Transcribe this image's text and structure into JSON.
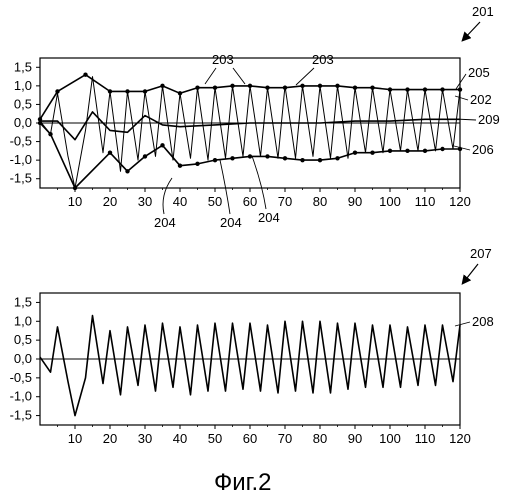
{
  "caption": "Фиг.2",
  "chart_data": [
    {
      "id": "top",
      "type": "line",
      "xlim": [
        0,
        120
      ],
      "ylim": [
        -1.75,
        1.75
      ],
      "x_ticks": [
        "10",
        "20",
        "30",
        "40",
        "50",
        "60",
        "70",
        "80",
        "90",
        "100",
        "110",
        "120"
      ],
      "y_ticks": [
        "1,5",
        "1,0",
        "0,5",
        "0,0",
        "-0,5",
        "-1,0",
        "-1,5"
      ],
      "series": [
        {
          "ref": "202",
          "x": [
            0,
            3,
            5,
            8,
            10,
            13,
            15,
            18,
            20,
            23,
            25,
            28,
            30,
            33,
            35,
            38,
            40,
            43,
            45,
            48,
            50,
            53,
            55,
            58,
            60,
            63,
            65,
            68,
            70,
            73,
            75,
            78,
            80,
            83,
            85,
            88,
            90,
            93,
            95,
            98,
            100,
            103,
            105,
            108,
            110,
            113,
            115,
            118,
            120
          ],
          "y": [
            0.05,
            -0.3,
            0.8,
            -0.9,
            -1.75,
            -0.2,
            1.25,
            -0.8,
            0.85,
            -1.3,
            0.85,
            -1.0,
            0.85,
            -0.9,
            1.0,
            -1.0,
            0.8,
            -0.95,
            0.95,
            -1.0,
            0.95,
            -0.95,
            1.0,
            -0.9,
            1.0,
            -0.9,
            0.95,
            -0.95,
            1.0,
            -0.95,
            1.0,
            -0.9,
            1.0,
            -0.95,
            1.0,
            -0.95,
            0.95,
            -0.8,
            0.95,
            -0.8,
            0.9,
            -0.75,
            0.9,
            -0.75,
            0.9,
            -0.75,
            0.9,
            -0.7,
            0.9
          ]
        },
        {
          "ref": "205",
          "x": [
            0,
            5,
            13,
            20,
            25,
            30,
            35,
            40,
            45,
            50,
            55,
            60,
            65,
            70,
            75,
            80,
            85,
            90,
            95,
            100,
            105,
            110,
            115,
            120
          ],
          "y": [
            0.1,
            0.85,
            1.3,
            0.85,
            0.85,
            0.85,
            1.0,
            0.8,
            0.95,
            0.95,
            1.0,
            1.0,
            0.95,
            0.95,
            1.0,
            1.0,
            1.0,
            0.95,
            0.95,
            0.9,
            0.9,
            0.9,
            0.9,
            0.9
          ]
        },
        {
          "ref": "206",
          "x": [
            0,
            3,
            10,
            20,
            25,
            30,
            35,
            40,
            45,
            50,
            55,
            60,
            65,
            70,
            75,
            80,
            85,
            90,
            95,
            100,
            105,
            110,
            115,
            120
          ],
          "y": [
            0.0,
            -0.3,
            -1.75,
            -0.8,
            -1.3,
            -0.9,
            -0.6,
            -1.15,
            -1.1,
            -1.0,
            -0.95,
            -0.9,
            -0.9,
            -0.95,
            -1.0,
            -1.0,
            -0.95,
            -0.8,
            -0.8,
            -0.75,
            -0.75,
            -0.75,
            -0.7,
            -0.7
          ]
        },
        {
          "ref": "209",
          "x": [
            0,
            5,
            10,
            15,
            20,
            25,
            30,
            35,
            40,
            50,
            60,
            70,
            80,
            90,
            100,
            110,
            120
          ],
          "y": [
            0.05,
            0.05,
            -0.45,
            0.3,
            -0.2,
            -0.25,
            0.2,
            -0.05,
            -0.1,
            -0.05,
            0.0,
            0.0,
            0.0,
            0.05,
            0.05,
            0.1,
            0.1
          ]
        }
      ],
      "labels": {
        "figure": "201",
        "upper_envelope": "203",
        "lower_envelope": "204",
        "r205": "205",
        "r202": "202",
        "r209": "209",
        "r206": "206"
      }
    },
    {
      "id": "bottom",
      "type": "line",
      "xlim": [
        0,
        120
      ],
      "ylim": [
        -1.75,
        1.75
      ],
      "x_ticks": [
        "10",
        "20",
        "30",
        "40",
        "50",
        "60",
        "70",
        "80",
        "90",
        "100",
        "110",
        "120"
      ],
      "y_ticks": [
        "1,5",
        "1,0",
        "0,5",
        "0,0",
        "-0,5",
        "-1,0",
        "-1,5"
      ],
      "series": [
        {
          "ref": "208",
          "x": [
            0,
            3,
            5,
            8,
            10,
            13,
            15,
            18,
            20,
            23,
            25,
            28,
            30,
            33,
            35,
            38,
            40,
            43,
            45,
            48,
            50,
            53,
            55,
            58,
            60,
            63,
            65,
            68,
            70,
            73,
            75,
            78,
            80,
            83,
            85,
            88,
            90,
            93,
            95,
            98,
            100,
            103,
            105,
            108,
            110,
            113,
            115,
            118,
            120
          ],
          "y": [
            0.05,
            -0.35,
            0.85,
            -0.6,
            -1.5,
            -0.5,
            1.15,
            -0.65,
            0.75,
            -0.95,
            0.85,
            -0.7,
            0.9,
            -0.85,
            0.95,
            -0.75,
            0.85,
            -0.95,
            0.9,
            -0.85,
            0.95,
            -0.85,
            0.95,
            -0.8,
            0.95,
            -0.85,
            0.9,
            -0.9,
            1.0,
            -0.85,
            1.0,
            -0.9,
            1.0,
            -0.9,
            0.95,
            -0.8,
            0.95,
            -0.75,
            0.9,
            -0.75,
            0.9,
            -0.75,
            0.85,
            -0.7,
            0.9,
            -0.7,
            0.9,
            -0.6,
            0.9
          ]
        }
      ],
      "labels": {
        "figure": "207",
        "r208": "208"
      }
    }
  ]
}
